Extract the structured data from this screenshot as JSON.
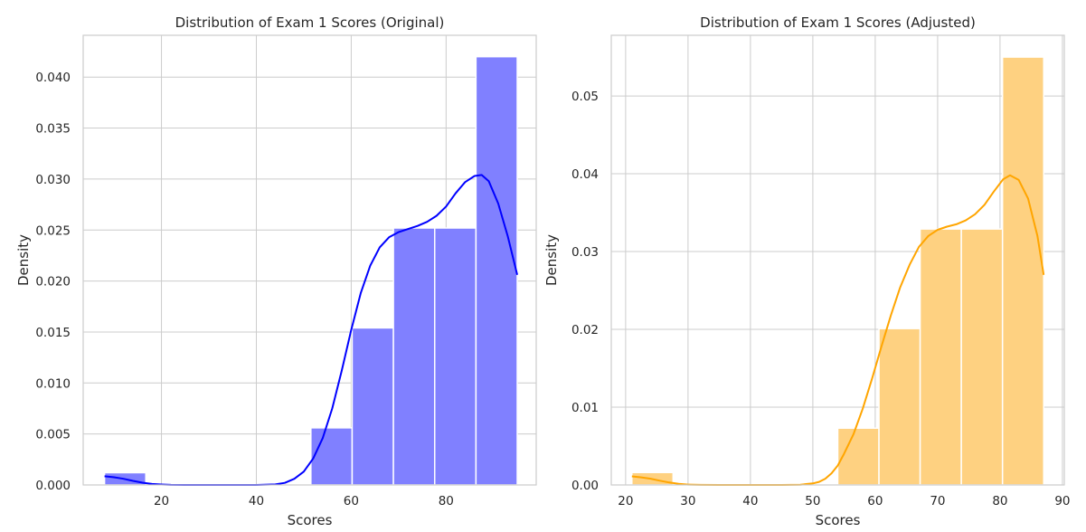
{
  "chart_data": [
    {
      "type": "bar",
      "subtype": "histogram with KDE",
      "title": "Distribution of Exam 1 Scores (Original)",
      "xlabel": "Scores",
      "ylabel": "Density",
      "xlim": [
        3.5,
        99
      ],
      "ylim": [
        0,
        0.0441
      ],
      "xticks": [
        20,
        40,
        60,
        80
      ],
      "yticks": [
        0,
        0.005,
        0.01,
        0.015,
        0.02,
        0.025,
        0.03,
        0.035,
        0.04
      ],
      "ytick_labels": [
        "0.000",
        "0.005",
        "0.010",
        "0.015",
        "0.020",
        "0.025",
        "0.030",
        "0.035",
        "0.040"
      ],
      "grid": true,
      "bar_color": "#8080ff",
      "kde_color": "#0000ff",
      "bins": [
        {
          "x0": 8,
          "x1": 16.7,
          "value": 0.0012
        },
        {
          "x0": 16.7,
          "x1": 25.4,
          "value": 0
        },
        {
          "x0": 25.4,
          "x1": 34.1,
          "value": 0
        },
        {
          "x0": 34.1,
          "x1": 42.8,
          "value": 0
        },
        {
          "x0": 42.8,
          "x1": 51.5,
          "value": 0
        },
        {
          "x0": 51.5,
          "x1": 60.2,
          "value": 0.0056
        },
        {
          "x0": 60.2,
          "x1": 68.9,
          "value": 0.0154
        },
        {
          "x0": 68.9,
          "x1": 77.6,
          "value": 0.0252
        },
        {
          "x0": 77.6,
          "x1": 86.3,
          "value": 0.0252
        },
        {
          "x0": 86.3,
          "x1": 95,
          "value": 0.042
        }
      ],
      "kde": {
        "x": [
          8,
          10,
          12,
          14,
          16,
          18,
          20,
          22,
          25,
          30,
          35,
          40,
          44,
          46,
          48,
          50,
          52,
          54,
          56,
          58,
          60,
          62,
          64,
          66,
          68,
          70,
          72,
          74,
          76,
          78,
          80,
          82,
          84,
          86,
          87.5,
          89,
          91,
          93,
          95
        ],
        "y": [
          0.00085,
          0.00075,
          0.0006,
          0.0004,
          0.00022,
          0.0001,
          4e-05,
          1e-05,
          0,
          0,
          0,
          0,
          5e-05,
          0.0002,
          0.0006,
          0.0013,
          0.0026,
          0.0046,
          0.0075,
          0.0112,
          0.0152,
          0.0188,
          0.0215,
          0.0233,
          0.0243,
          0.0248,
          0.0251,
          0.0254,
          0.0258,
          0.0264,
          0.0273,
          0.0286,
          0.0297,
          0.0303,
          0.0304,
          0.0298,
          0.0276,
          0.0244,
          0.0206
        ]
      }
    },
    {
      "type": "bar",
      "subtype": "histogram with KDE",
      "title": "Distribution of Exam 1 Scores (Adjusted)",
      "xlabel": "Scores",
      "ylabel": "Density",
      "xlim": [
        17.7,
        90.3
      ],
      "ylim": [
        0,
        0.0578
      ],
      "xticks": [
        20,
        30,
        40,
        50,
        60,
        70,
        80,
        90
      ],
      "yticks": [
        0,
        0.01,
        0.02,
        0.03,
        0.04,
        0.05
      ],
      "ytick_labels": [
        "0.00",
        "0.01",
        "0.02",
        "0.03",
        "0.04",
        "0.05"
      ],
      "grid": true,
      "bar_color": "#fed181",
      "kde_color": "#ffa500",
      "bins": [
        {
          "x0": 21,
          "x1": 27.6,
          "value": 0.0016
        },
        {
          "x0": 27.6,
          "x1": 34.2,
          "value": 0
        },
        {
          "x0": 34.2,
          "x1": 40.8,
          "value": 0
        },
        {
          "x0": 40.8,
          "x1": 47.4,
          "value": 0
        },
        {
          "x0": 47.4,
          "x1": 54,
          "value": 0
        },
        {
          "x0": 54,
          "x1": 60.6,
          "value": 0.0073
        },
        {
          "x0": 60.6,
          "x1": 67.2,
          "value": 0.0201
        },
        {
          "x0": 67.2,
          "x1": 73.8,
          "value": 0.0329
        },
        {
          "x0": 73.8,
          "x1": 80.4,
          "value": 0.0329
        },
        {
          "x0": 80.4,
          "x1": 87,
          "value": 0.055
        }
      ],
      "kde": {
        "x": [
          21,
          22.5,
          24,
          25.5,
          27,
          28.5,
          30,
          32,
          35,
          40,
          45,
          48,
          50,
          51,
          52,
          53,
          54,
          55,
          56.5,
          58,
          59.5,
          61,
          62.5,
          64,
          65.5,
          67,
          68.5,
          70,
          71.5,
          73,
          74.5,
          76,
          77.5,
          79,
          80.5,
          81.6,
          83,
          84.5,
          86,
          87
        ],
        "y": [
          0.0011,
          0.00098,
          0.0008,
          0.00055,
          0.00031,
          0.00014,
          5e-05,
          1e-05,
          0,
          0,
          0,
          4e-05,
          0.0002,
          0.0004,
          0.0008,
          0.0015,
          0.0025,
          0.004,
          0.0065,
          0.0098,
          0.0137,
          0.0178,
          0.0218,
          0.0254,
          0.0283,
          0.0306,
          0.032,
          0.0328,
          0.0332,
          0.0335,
          0.034,
          0.0348,
          0.036,
          0.0377,
          0.0393,
          0.0398,
          0.0392,
          0.0368,
          0.032,
          0.027
        ]
      }
    }
  ]
}
